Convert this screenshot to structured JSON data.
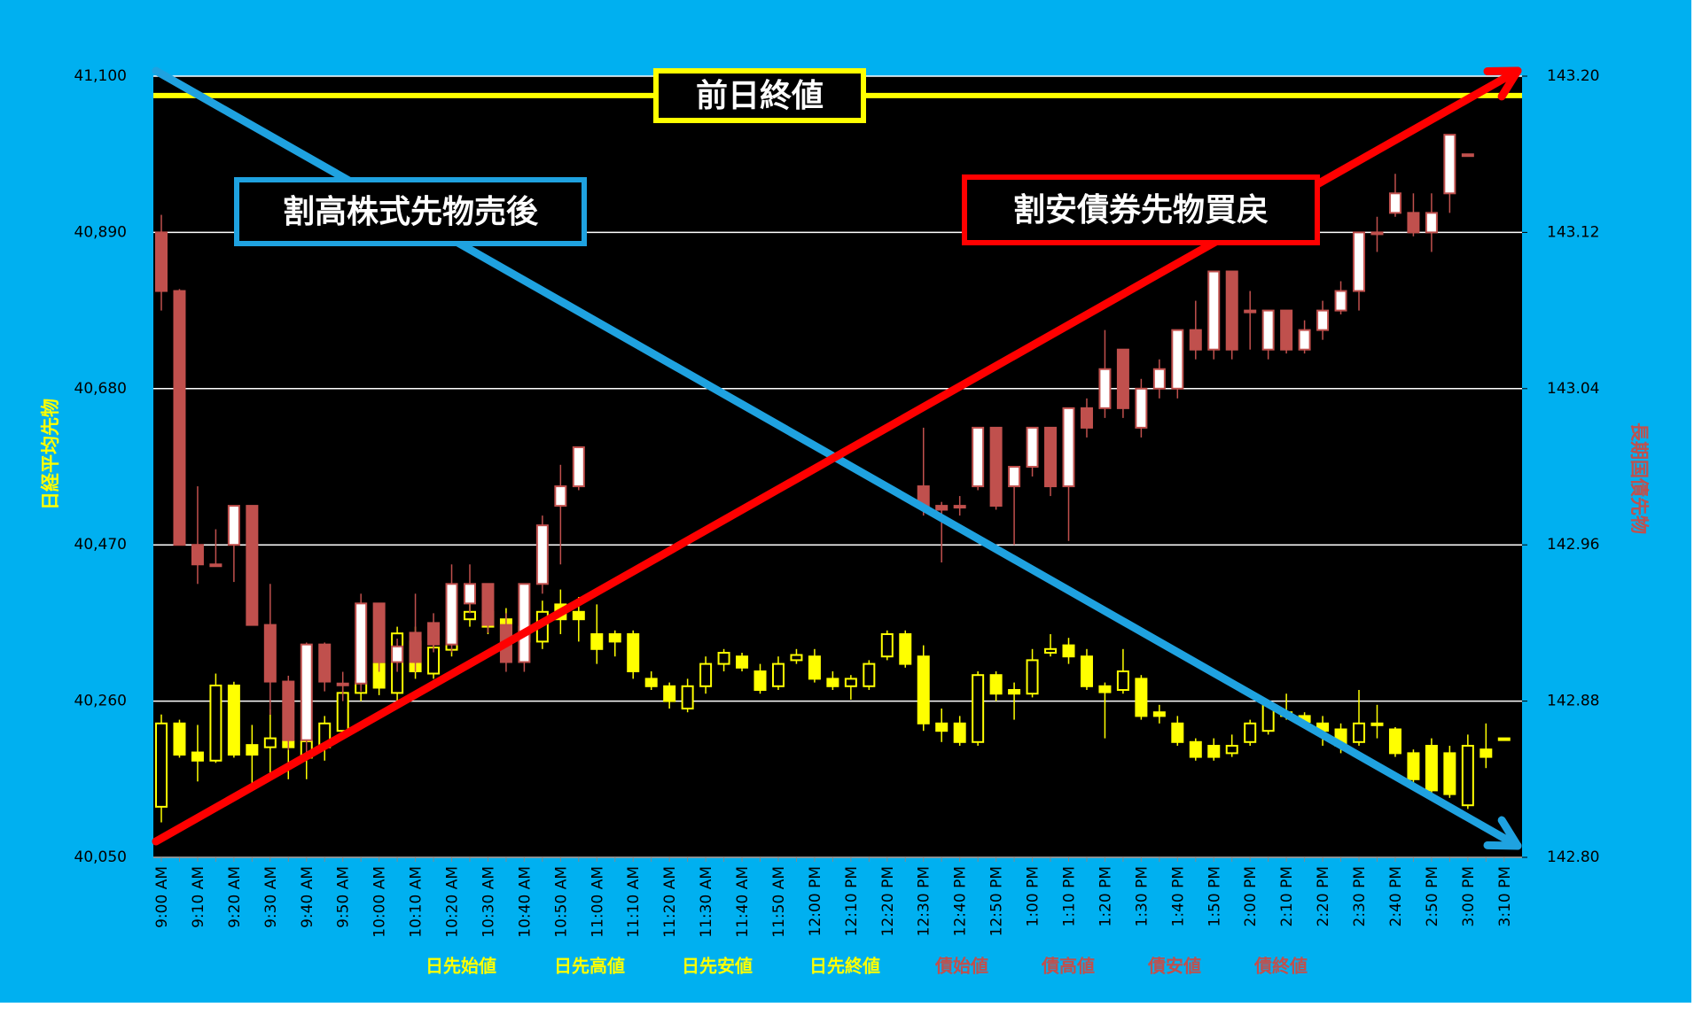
{
  "chart_data": {
    "type": "candlestick",
    "ylabel": "日経平均先物",
    "y2label": "長期国債先物",
    "ylim": [
      40050,
      41100
    ],
    "yticks": [
      {
        "value": 40050,
        "label": "40,050"
      },
      {
        "value": 40260,
        "label": "40,260"
      },
      {
        "value": 40470,
        "label": "40,470"
      },
      {
        "value": 40680,
        "label": "40,680"
      },
      {
        "value": 40890,
        "label": "40,890"
      },
      {
        "value": 41100,
        "label": "41,100"
      }
    ],
    "y2lim": [
      142.8,
      143.2
    ],
    "y2ticks": [
      {
        "value": 142.8,
        "label": "142.80"
      },
      142.88,
      142.96,
      143.04,
      143.12,
      {
        "value": 143.2,
        "label": "143.20"
      }
    ],
    "grid": true,
    "reference_line": {
      "label": "前日終値",
      "value": 41074,
      "color": "#ffff00"
    },
    "annotations": [
      {
        "text": "割高株式先物売後",
        "color": "#1fa2e0"
      },
      {
        "text": "割安債券先物買戻",
        "color": "#ff0000"
      }
    ],
    "categories": [
      "9:00 AM",
      null,
      "9:10 AM",
      null,
      "9:20 AM",
      null,
      "9:30 AM",
      null,
      "9:40 AM",
      null,
      "9:50 AM",
      null,
      "10:00 AM",
      null,
      "10:10 AM",
      null,
      "10:20 AM",
      null,
      "10:30 AM",
      null,
      "10:40 AM",
      null,
      "10:50 AM",
      null,
      "11:00 AM",
      null,
      "11:10 AM",
      null,
      "11:20 AM",
      null,
      "11:30 AM",
      null,
      "11:40 AM",
      null,
      "11:50 AM",
      null,
      "12:00 PM",
      null,
      "12:10 PM",
      null,
      "12:20 PM",
      null,
      "12:30 PM",
      null,
      "12:40 PM",
      null,
      "12:50 PM",
      null,
      "1:00 PM",
      null,
      "1:10 PM",
      null,
      "1:20 PM",
      null,
      "1:30 PM",
      null,
      "1:40 PM",
      null,
      "1:50 PM",
      null,
      "2:00 PM",
      null,
      "2:10 PM",
      null,
      "2:20 PM",
      null,
      "2:30 PM",
      null,
      "2:40 PM",
      null,
      "2:50 PM",
      null,
      "3:00 PM",
      null,
      "3:10 PM"
    ],
    "series": [
      {
        "axis": "y",
        "color": "#ffff00",
        "up_fill": "#000000",
        "field_labels": [
          "日先始値",
          "日先高値",
          "日先安値",
          "日先終値"
        ],
        "open": [
          40118,
          40230,
          40191,
          40180,
          40281,
          40201,
          40198,
          40206,
          40184,
          40198,
          40220,
          40271,
          40310,
          40271,
          40340,
          40297,
          40329,
          40370,
          40380,
          40370,
          40340,
          40340,
          40390,
          40380,
          40350,
          40350,
          40350,
          40290,
          40280,
          40250,
          40280,
          40310,
          40320,
          40300,
          40280,
          40315,
          40320,
          40290,
          40280,
          40280,
          40320,
          40350,
          40320,
          40230,
          40230,
          40205,
          40295,
          40275,
          40270,
          40325,
          40335,
          40320,
          40280,
          40275,
          40290,
          40245,
          40230,
          40205,
          40200,
          40190,
          40205,
          40220,
          40245,
          40240,
          40230,
          40222,
          40205,
          40230,
          40222,
          40190,
          40200,
          40190,
          40120,
          40195,
          40210
        ],
        "high": [
          40242,
          40235,
          40228,
          40297,
          40286,
          40228,
          40249,
          40213,
          40220,
          40240,
          40280,
          40297,
          40320,
          40360,
          40360,
          40340,
          40355,
          40390,
          40385,
          40385,
          40380,
          40395,
          40410,
          40400,
          40390,
          40355,
          40355,
          40300,
          40285,
          40290,
          40320,
          40330,
          40325,
          40310,
          40320,
          40330,
          40330,
          40300,
          40295,
          40315,
          40355,
          40355,
          40335,
          40250,
          40240,
          40300,
          40300,
          40285,
          40330,
          40350,
          40345,
          40330,
          40285,
          40330,
          40295,
          40255,
          40240,
          40210,
          40210,
          40215,
          40235,
          40260,
          40270,
          40245,
          40240,
          40230,
          40275,
          40255,
          40225,
          40195,
          40210,
          40200,
          40215,
          40230,
          40210
        ],
        "low": [
          40097,
          40184,
          40152,
          40177,
          40184,
          40147,
          40162,
          40155,
          40155,
          40180,
          40210,
          40260,
          40268,
          40260,
          40290,
          40290,
          40320,
          40360,
          40350,
          40320,
          40330,
          40330,
          40350,
          40340,
          40310,
          40320,
          40290,
          40275,
          40250,
          40245,
          40270,
          40300,
          40300,
          40270,
          40275,
          40310,
          40285,
          40275,
          40262,
          40275,
          40315,
          40305,
          40220,
          40205,
          40200,
          40200,
          40260,
          40235,
          40265,
          40320,
          40310,
          40275,
          40210,
          40270,
          40235,
          40230,
          40200,
          40180,
          40180,
          40185,
          40200,
          40215,
          40235,
          40225,
          40200,
          40190,
          40200,
          40210,
          40185,
          40150,
          40135,
          40130,
          40115,
          40170,
          40210
        ],
        "close": [
          40230,
          40188,
          40180,
          40281,
          40188,
          40188,
          40210,
          40198,
          40206,
          40230,
          40271,
          40286,
          40278,
          40351,
          40300,
          40332,
          40344,
          40380,
          40360,
          40340,
          40360,
          40380,
          40370,
          40370,
          40330,
          40340,
          40300,
          40280,
          40260,
          40280,
          40310,
          40325,
          40305,
          40275,
          40310,
          40322,
          40290,
          40280,
          40290,
          40310,
          40350,
          40310,
          40230,
          40220,
          40205,
          40295,
          40270,
          40270,
          40315,
          40330,
          40320,
          40280,
          40272,
          40300,
          40240,
          40240,
          40205,
          40185,
          40185,
          40200,
          40230,
          40255,
          40240,
          40232,
          40220,
          40200,
          40230,
          40228,
          40190,
          40155,
          40140,
          40135,
          40200,
          40185,
          40210
        ]
      },
      {
        "axis": "y2",
        "color": "#c0504d",
        "up_fill": "#ffffff",
        "field_labels": [
          "債始値",
          "債高値",
          "債安値",
          "債終値"
        ],
        "open": [
          143.12,
          143.09,
          142.96,
          142.95,
          142.96,
          142.98,
          142.919,
          142.89,
          142.86,
          142.909,
          142.889,
          142.889,
          142.93,
          142.9,
          142.915,
          142.92,
          142.909,
          142.93,
          142.94,
          142.919,
          142.9,
          142.94,
          142.98,
          142.99,
          null,
          null,
          null,
          null,
          null,
          null,
          null,
          null,
          null,
          null,
          null,
          null,
          null,
          null,
          null,
          null,
          null,
          null,
          142.99,
          142.98,
          142.98,
          142.99,
          143.02,
          142.99,
          143.0,
          143.02,
          142.99,
          143.03,
          143.03,
          143.06,
          143.02,
          143.04,
          143.04,
          143.07,
          143.06,
          143.1,
          143.08,
          143.06,
          143.08,
          143.06,
          143.07,
          143.08,
          143.09,
          143.12,
          143.13,
          143.13,
          143.12,
          143.14,
          143.16,
          null,
          null
        ],
        "high": [
          143.129,
          143.091,
          142.99,
          142.968,
          142.98,
          142.98,
          142.94,
          142.893,
          142.91,
          142.91,
          142.895,
          142.935,
          142.93,
          142.912,
          142.935,
          142.925,
          142.95,
          142.95,
          142.94,
          142.925,
          142.94,
          142.975,
          143.001,
          143.01,
          null,
          null,
          null,
          null,
          null,
          null,
          null,
          null,
          null,
          null,
          null,
          null,
          null,
          null,
          null,
          null,
          null,
          null,
          143.02,
          142.982,
          142.985,
          143.02,
          143.02,
          143.0,
          143.02,
          143.02,
          143.03,
          143.035,
          143.07,
          143.06,
          143.045,
          143.055,
          143.07,
          143.085,
          143.1,
          143.1,
          143.09,
          143.08,
          143.08,
          143.075,
          143.085,
          143.095,
          143.12,
          143.128,
          143.15,
          143.14,
          143.14,
          143.17,
          143.16,
          null,
          null
        ],
        "low": [
          143.08,
          142.96,
          142.94,
          142.95,
          142.941,
          142.919,
          142.873,
          142.855,
          142.851,
          142.885,
          142.88,
          142.885,
          142.895,
          142.895,
          142.895,
          142.905,
          142.905,
          142.925,
          142.915,
          142.895,
          142.895,
          142.935,
          142.95,
          142.988,
          null,
          null,
          null,
          null,
          null,
          null,
          null,
          null,
          null,
          null,
          null,
          null,
          null,
          null,
          null,
          null,
          null,
          null,
          142.975,
          142.951,
          142.975,
          142.988,
          142.978,
          142.96,
          142.995,
          142.985,
          142.962,
          143.015,
          143.025,
          143.025,
          143.015,
          143.035,
          143.035,
          143.055,
          143.055,
          143.055,
          143.06,
          143.055,
          143.058,
          143.058,
          143.065,
          143.078,
          143.08,
          143.11,
          143.128,
          143.118,
          143.11,
          143.13,
          143.16,
          null,
          null
        ],
        "close": [
          143.09,
          142.96,
          142.95,
          142.95,
          142.98,
          142.919,
          142.89,
          142.86,
          142.909,
          142.89,
          142.889,
          142.93,
          142.9,
          142.908,
          142.9,
          142.909,
          142.94,
          142.94,
          142.919,
          142.9,
          142.94,
          142.97,
          142.99,
          143.01,
          null,
          null,
          null,
          null,
          null,
          null,
          null,
          null,
          null,
          null,
          null,
          null,
          null,
          null,
          null,
          null,
          null,
          null,
          142.98,
          142.978,
          142.98,
          143.02,
          142.98,
          143.0,
          143.02,
          142.99,
          143.03,
          143.02,
          143.05,
          143.03,
          143.04,
          143.05,
          143.07,
          143.06,
          143.1,
          143.06,
          143.08,
          143.08,
          143.06,
          143.07,
          143.08,
          143.09,
          143.12,
          143.12,
          143.14,
          143.12,
          143.13,
          143.17,
          143.16,
          null,
          null
        ]
      }
    ]
  }
}
